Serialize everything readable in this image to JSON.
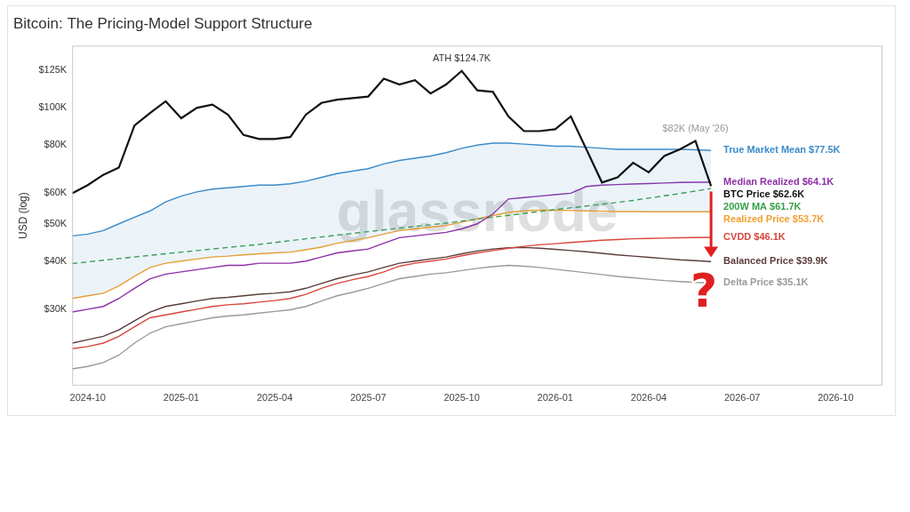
{
  "chart_data": {
    "type": "line",
    "title": "Bitcoin: The Pricing-Model Support Structure",
    "y_label": "USD (log)",
    "watermark": "glassnode",
    "log": "y",
    "grid": false,
    "ylim": [
      19000,
      145000
    ],
    "yticks": [
      {
        "value": 30000,
        "label": "$30K"
      },
      {
        "value": 40000,
        "label": "$40K"
      },
      {
        "value": 50000,
        "label": "$50K"
      },
      {
        "value": 60000,
        "label": "$60K"
      },
      {
        "value": 80000,
        "label": "$80K"
      },
      {
        "value": 100000,
        "label": "$100K"
      },
      {
        "value": 125000,
        "label": "$125K"
      }
    ],
    "categories": [
      null,
      "2024-10",
      null,
      null,
      null,
      null,
      null,
      "2025-01",
      null,
      null,
      null,
      null,
      null,
      "2025-04",
      null,
      null,
      null,
      null,
      null,
      "2025-07",
      null,
      null,
      null,
      null,
      null,
      "2025-10",
      null,
      null,
      null,
      null,
      null,
      "2026-01",
      null,
      null,
      null,
      null,
      null,
      "2026-04",
      null,
      null,
      null,
      null,
      null,
      "2026-07",
      null,
      null,
      null,
      null,
      null,
      "2026-10",
      null,
      null,
      null
    ],
    "series": [
      {
        "name": "BTC Price",
        "end_label": "$62.6K",
        "color": "#111111",
        "line_style": "solid",
        "values": [
          60000,
          63000,
          67000,
          70000,
          90000,
          97000,
          104000,
          94000,
          100000,
          102000,
          96000,
          85000,
          83000,
          83000,
          84000,
          96000,
          103000,
          105000,
          106000,
          107000,
          119000,
          115000,
          118000,
          109000,
          115000,
          124700,
          111000,
          110000,
          95000,
          87000,
          87000,
          88000,
          95000,
          78000,
          64000,
          66000,
          72000,
          68000,
          75000,
          78000,
          82000,
          62600,
          null,
          null,
          null,
          null,
          null,
          null,
          null,
          null,
          null,
          null,
          null
        ]
      },
      {
        "name": "True Market Mean",
        "end_label": "$77.5K",
        "color": "#3b8bc9",
        "line_style": "solid",
        "values": [
          46500,
          47000,
          48000,
          50000,
          52000,
          54000,
          57000,
          59000,
          60500,
          61500,
          62000,
          62500,
          63000,
          63000,
          63500,
          64500,
          66000,
          67500,
          68500,
          69500,
          71500,
          73000,
          74000,
          75000,
          76500,
          78500,
          80000,
          81000,
          81000,
          80500,
          80000,
          79500,
          79500,
          79000,
          78500,
          78000,
          78000,
          78000,
          78000,
          78000,
          77800,
          77500,
          null,
          null,
          null,
          null,
          null,
          null,
          null,
          null,
          null,
          null,
          null
        ]
      },
      {
        "name": "Median Realized",
        "end_label": "$64.1K",
        "color": "#8e2fa8",
        "line_style": "solid",
        "values": [
          29500,
          30000,
          30500,
          32000,
          34000,
          36000,
          37000,
          37500,
          38000,
          38500,
          39000,
          39000,
          39500,
          39500,
          39500,
          40000,
          41000,
          42000,
          42500,
          43000,
          44500,
          46000,
          46500,
          47000,
          47500,
          48500,
          50000,
          53000,
          58000,
          58500,
          59000,
          59500,
          60000,
          62500,
          63000,
          63200,
          63400,
          63600,
          63800,
          64000,
          64100,
          64100,
          null,
          null,
          null,
          null,
          null,
          null,
          null,
          null,
          null,
          null,
          null
        ]
      },
      {
        "name": "200W MA",
        "end_label": "$61.7K",
        "color": "#3aa04a",
        "line_style": "dashed",
        "values": [
          39400,
          39800,
          40200,
          40600,
          41000,
          41400,
          41800,
          42200,
          42600,
          43000,
          43400,
          43800,
          44200,
          44700,
          45200,
          45700,
          46200,
          46700,
          47200,
          47700,
          48200,
          48700,
          49200,
          49700,
          50200,
          50800,
          51400,
          52000,
          52600,
          53200,
          53800,
          54400,
          55000,
          55600,
          56200,
          56800,
          57500,
          58300,
          59100,
          59900,
          60800,
          61700,
          null,
          null,
          null,
          null,
          null,
          null,
          null,
          null,
          null,
          null,
          null
        ]
      },
      {
        "name": "Realized Price",
        "end_label": "$53.7K",
        "color": "#f0a030",
        "line_style": "solid",
        "values": [
          32000,
          32500,
          33000,
          34500,
          36500,
          38500,
          39500,
          40000,
          40500,
          41000,
          41200,
          41500,
          41800,
          42000,
          42200,
          42800,
          43500,
          44500,
          45200,
          46000,
          47000,
          48000,
          48500,
          49000,
          49500,
          50500,
          51500,
          52500,
          53500,
          54000,
          54200,
          54200,
          54100,
          54000,
          53900,
          53800,
          53800,
          53700,
          53700,
          53700,
          53700,
          53700,
          null,
          null,
          null,
          null,
          null,
          null,
          null,
          null,
          null,
          null,
          null
        ]
      },
      {
        "name": "CVDD",
        "end_label": "$46.1K",
        "color": "#d9463d",
        "line_style": "solid",
        "values": [
          23700,
          24000,
          24500,
          25500,
          27000,
          28500,
          29000,
          29500,
          30000,
          30500,
          30800,
          31000,
          31300,
          31600,
          32000,
          32800,
          34000,
          35000,
          35800,
          36500,
          37500,
          38800,
          39500,
          40000,
          40500,
          41300,
          42000,
          42600,
          43200,
          43700,
          44100,
          44400,
          44700,
          45000,
          45300,
          45500,
          45700,
          45800,
          45900,
          46000,
          46050,
          46100,
          null,
          null,
          null,
          null,
          null,
          null,
          null,
          null,
          null,
          null,
          null
        ]
      },
      {
        "name": "Balanced Price",
        "end_label": "$39.9K",
        "color": "#5b3d3a",
        "line_style": "solid",
        "values": [
          24500,
          25000,
          25500,
          26500,
          28000,
          29500,
          30500,
          31000,
          31500,
          32000,
          32200,
          32500,
          32800,
          33000,
          33300,
          34000,
          35000,
          36000,
          36800,
          37500,
          38500,
          39500,
          40000,
          40500,
          41000,
          41800,
          42500,
          43000,
          43300,
          43400,
          43200,
          42900,
          42600,
          42300,
          41900,
          41500,
          41200,
          40900,
          40600,
          40300,
          40100,
          39900,
          null,
          null,
          null,
          null,
          null,
          null,
          null,
          null,
          null,
          null,
          null
        ]
      },
      {
        "name": "Delta Price",
        "end_label": "$35.1K",
        "color": "#9a9a9a",
        "line_style": "solid",
        "values": [
          21000,
          21300,
          21800,
          22800,
          24500,
          26000,
          27000,
          27500,
          28000,
          28500,
          28800,
          29000,
          29300,
          29600,
          29900,
          30500,
          31500,
          32500,
          33200,
          34000,
          35000,
          36000,
          36500,
          37000,
          37300,
          37800,
          38300,
          38700,
          39000,
          38800,
          38500,
          38100,
          37700,
          37300,
          36900,
          36500,
          36200,
          35900,
          35600,
          35400,
          35200,
          35100,
          null,
          null,
          null,
          null,
          null,
          null,
          null,
          null,
          null,
          null,
          null
        ]
      }
    ],
    "annotations": [
      {
        "text": "ATH $124.7K",
        "value": 124700,
        "color": "#333333"
      },
      {
        "text": "$82K (May '26)",
        "value": 82000,
        "color": "#999999"
      },
      {
        "text": "?",
        "color": "#e02020"
      }
    ]
  }
}
